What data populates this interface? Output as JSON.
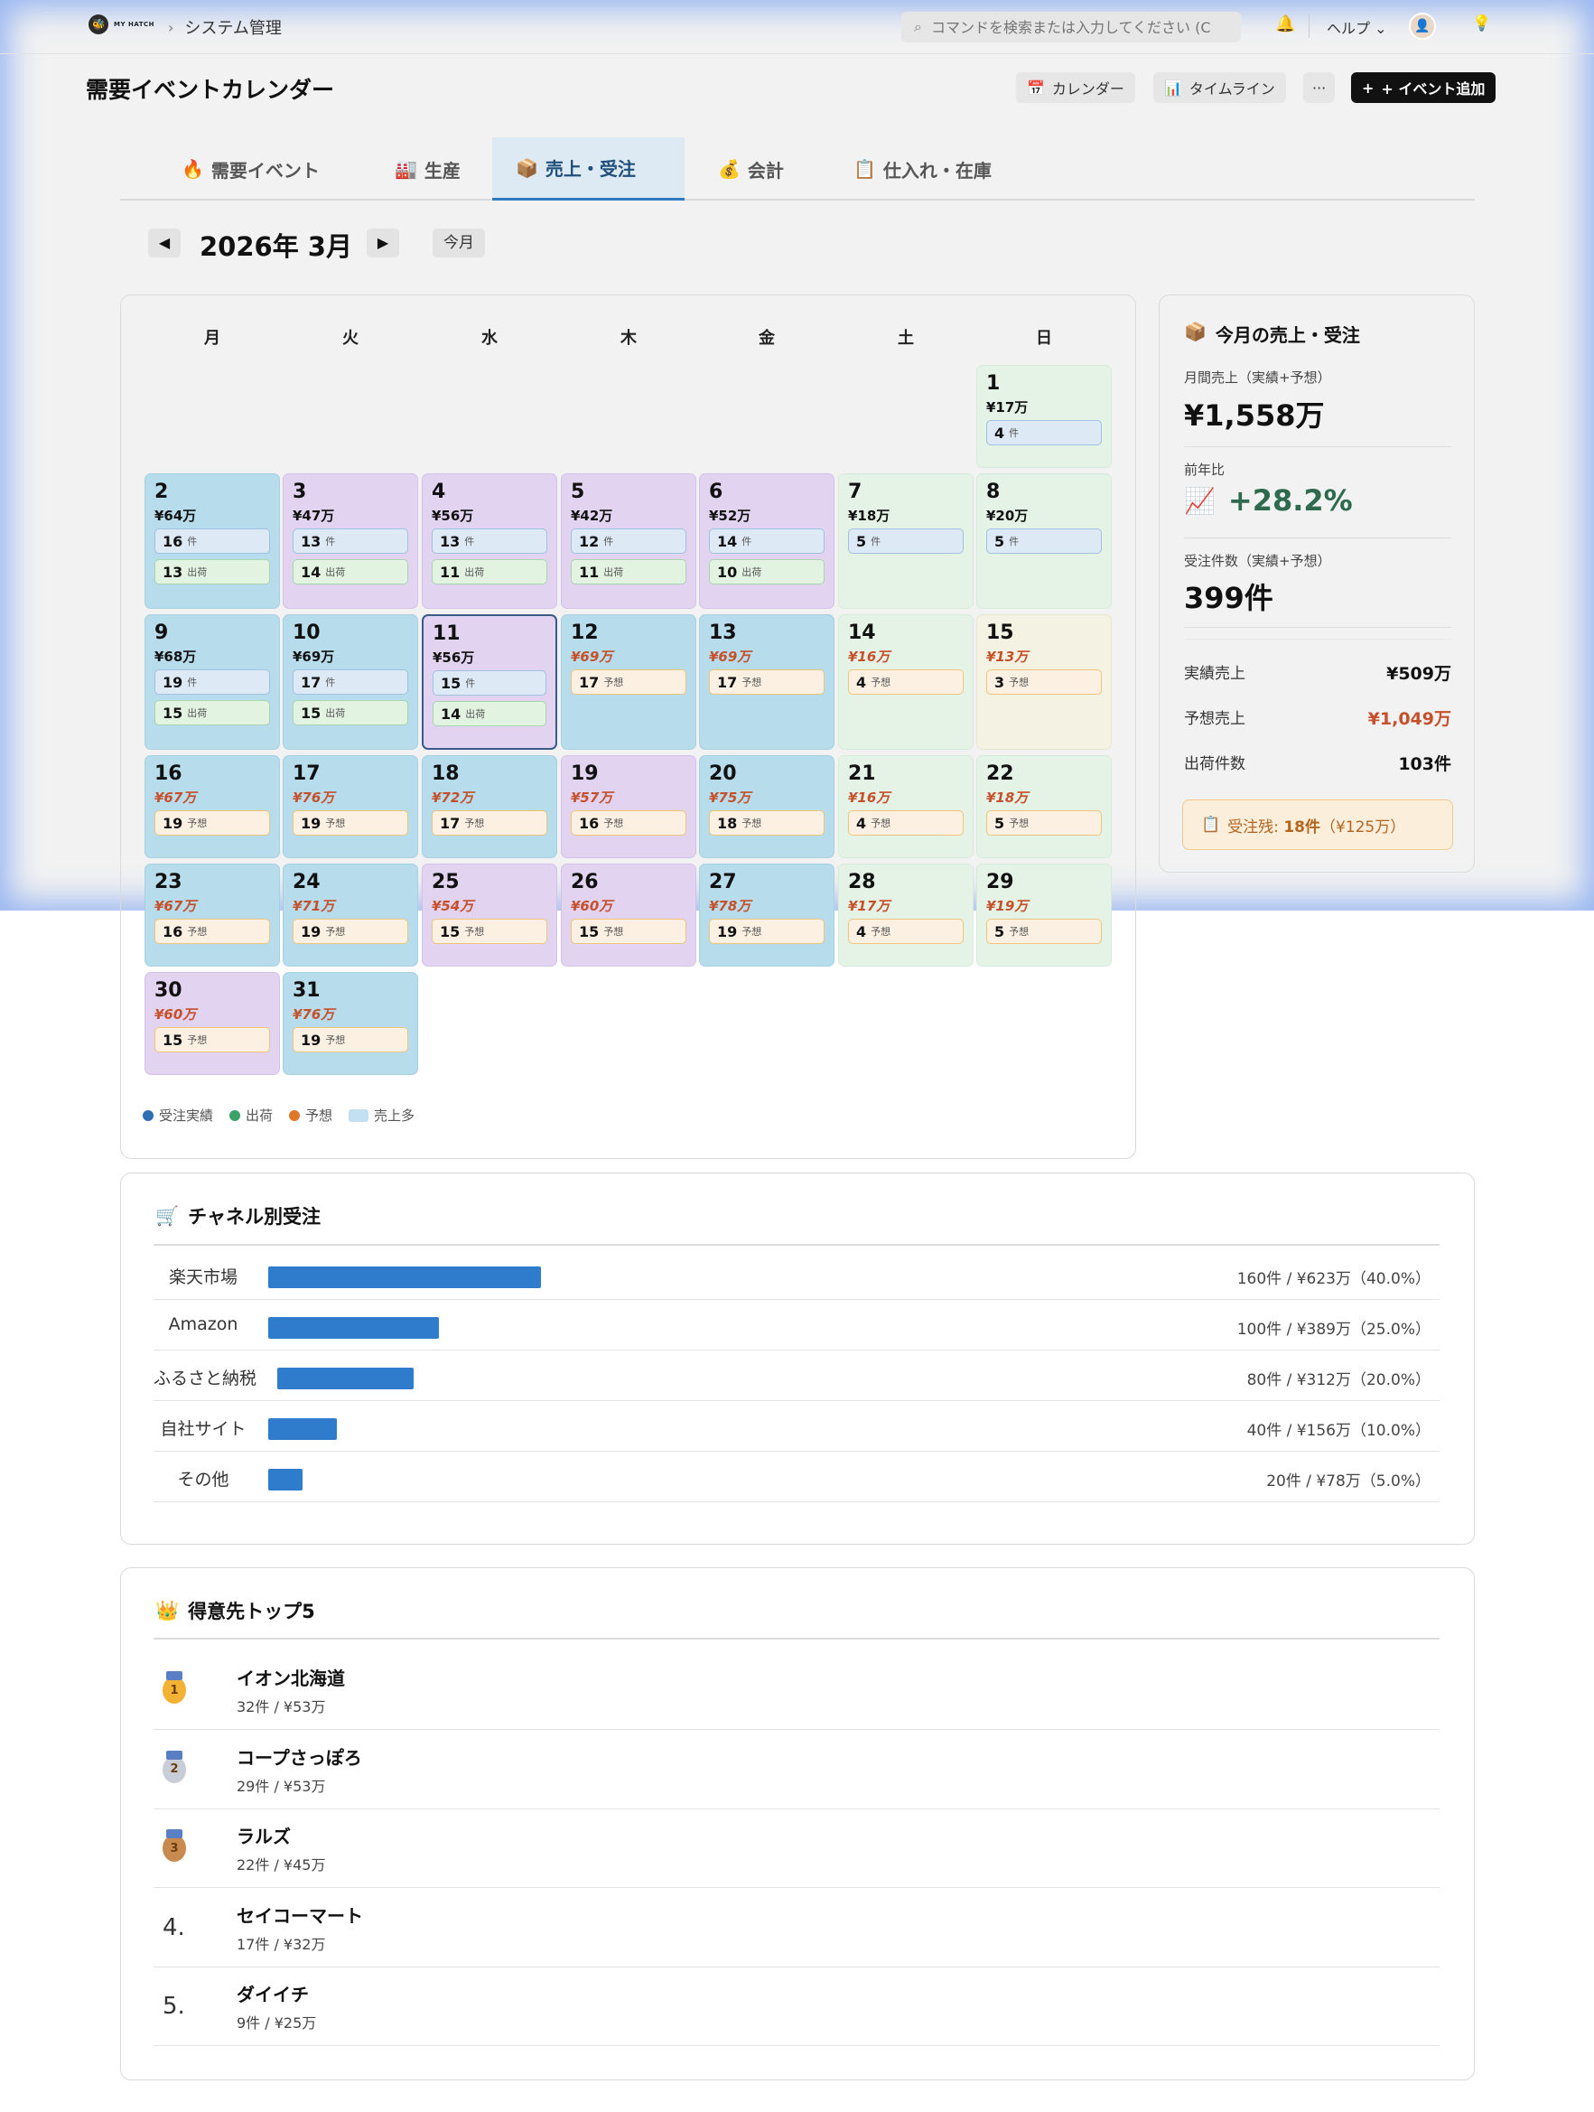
{
  "topbar": {
    "logo_text": "MY HATCH",
    "breadcrumb": "システム管理",
    "search_placeholder": "コマンドを検索または入力してください (C",
    "help_label": "ヘルプ"
  },
  "header": {
    "title": "需要イベントカレンダー",
    "btn_calendar": "カレンダー",
    "btn_timeline": "タイムライン",
    "btn_more": "···",
    "btn_add": "+ イベント追加"
  },
  "tabs": [
    {
      "label": "需要イベント",
      "icon": "🔥"
    },
    {
      "label": "生産",
      "icon": "🏭"
    },
    {
      "label": "売上・受注",
      "icon": "📦"
    },
    {
      "label": "会計",
      "icon": "💰"
    },
    {
      "label": "仕入れ・在庫",
      "icon": "📋"
    }
  ],
  "calendar": {
    "month_title": "2026年 3月",
    "today_label": "今月",
    "weekdays": [
      "月",
      "火",
      "水",
      "木",
      "金",
      "土",
      "日"
    ],
    "days": [
      {
        "d": "1",
        "amt": "¥17万",
        "kind": "actual",
        "bg": "g",
        "p1": "4",
        "p1u": "件",
        "p1t": "ord"
      },
      {
        "d": "2",
        "amt": "¥64万",
        "kind": "actual",
        "bg": "b",
        "p1": "16",
        "p1u": "件",
        "p1t": "ord",
        "p2": "13",
        "p2u": "出荷",
        "p2t": "shp"
      },
      {
        "d": "3",
        "amt": "¥47万",
        "kind": "actual",
        "bg": "p",
        "p1": "13",
        "p1u": "件",
        "p1t": "ord",
        "p2": "14",
        "p2u": "出荷",
        "p2t": "shp"
      },
      {
        "d": "4",
        "amt": "¥56万",
        "kind": "actual",
        "bg": "p",
        "p1": "13",
        "p1u": "件",
        "p1t": "ord",
        "p2": "11",
        "p2u": "出荷",
        "p2t": "shp"
      },
      {
        "d": "5",
        "amt": "¥42万",
        "kind": "actual",
        "bg": "p",
        "p1": "12",
        "p1u": "件",
        "p1t": "ord",
        "p2": "11",
        "p2u": "出荷",
        "p2t": "shp"
      },
      {
        "d": "6",
        "amt": "¥52万",
        "kind": "actual",
        "bg": "p",
        "p1": "14",
        "p1u": "件",
        "p1t": "ord",
        "p2": "10",
        "p2u": "出荷",
        "p2t": "shp"
      },
      {
        "d": "7",
        "amt": "¥18万",
        "kind": "actual",
        "bg": "g",
        "p1": "5",
        "p1u": "件",
        "p1t": "ord"
      },
      {
        "d": "8",
        "amt": "¥20万",
        "kind": "actual",
        "bg": "g",
        "p1": "5",
        "p1u": "件",
        "p1t": "ord"
      },
      {
        "d": "9",
        "amt": "¥68万",
        "kind": "actual",
        "bg": "b",
        "p1": "19",
        "p1u": "件",
        "p1t": "ord",
        "p2": "15",
        "p2u": "出荷",
        "p2t": "shp"
      },
      {
        "d": "10",
        "amt": "¥69万",
        "kind": "actual",
        "bg": "b",
        "p1": "17",
        "p1u": "件",
        "p1t": "ord",
        "p2": "15",
        "p2u": "出荷",
        "p2t": "shp"
      },
      {
        "d": "11",
        "amt": "¥56万",
        "kind": "actual",
        "bg": "p",
        "sel": true,
        "p1": "15",
        "p1u": "件",
        "p1t": "ord",
        "p2": "14",
        "p2u": "出荷",
        "p2t": "shp"
      },
      {
        "d": "12",
        "amt": "¥69万",
        "kind": "forecast",
        "bg": "b",
        "p1": "17",
        "p1u": "予想",
        "p1t": "fct"
      },
      {
        "d": "13",
        "amt": "¥69万",
        "kind": "forecast",
        "bg": "b",
        "p1": "17",
        "p1u": "予想",
        "p1t": "fct"
      },
      {
        "d": "14",
        "amt": "¥16万",
        "kind": "forecast",
        "bg": "g",
        "p1": "4",
        "p1u": "予想",
        "p1t": "fct"
      },
      {
        "d": "15",
        "amt": "¥13万",
        "kind": "forecast",
        "bg": "y",
        "p1": "3",
        "p1u": "予想",
        "p1t": "fct"
      },
      {
        "d": "16",
        "amt": "¥67万",
        "kind": "forecast",
        "bg": "b",
        "p1": "19",
        "p1u": "予想",
        "p1t": "fct"
      },
      {
        "d": "17",
        "amt": "¥76万",
        "kind": "forecast",
        "bg": "b",
        "p1": "19",
        "p1u": "予想",
        "p1t": "fct"
      },
      {
        "d": "18",
        "amt": "¥72万",
        "kind": "forecast",
        "bg": "b",
        "p1": "17",
        "p1u": "予想",
        "p1t": "fct"
      },
      {
        "d": "19",
        "amt": "¥57万",
        "kind": "forecast",
        "bg": "p",
        "p1": "16",
        "p1u": "予想",
        "p1t": "fct"
      },
      {
        "d": "20",
        "amt": "¥75万",
        "kind": "forecast",
        "bg": "b",
        "p1": "18",
        "p1u": "予想",
        "p1t": "fct"
      },
      {
        "d": "21",
        "amt": "¥16万",
        "kind": "forecast",
        "bg": "g",
        "p1": "4",
        "p1u": "予想",
        "p1t": "fct"
      },
      {
        "d": "22",
        "amt": "¥18万",
        "kind": "forecast",
        "bg": "g",
        "p1": "5",
        "p1u": "予想",
        "p1t": "fct"
      },
      {
        "d": "23",
        "amt": "¥67万",
        "kind": "forecast",
        "bg": "b",
        "p1": "16",
        "p1u": "予想",
        "p1t": "fct"
      },
      {
        "d": "24",
        "amt": "¥71万",
        "kind": "forecast",
        "bg": "b",
        "p1": "19",
        "p1u": "予想",
        "p1t": "fct"
      },
      {
        "d": "25",
        "amt": "¥54万",
        "kind": "forecast",
        "bg": "p",
        "p1": "15",
        "p1u": "予想",
        "p1t": "fct"
      },
      {
        "d": "26",
        "amt": "¥60万",
        "kind": "forecast",
        "bg": "p",
        "p1": "15",
        "p1u": "予想",
        "p1t": "fct"
      },
      {
        "d": "27",
        "amt": "¥78万",
        "kind": "forecast",
        "bg": "b",
        "p1": "19",
        "p1u": "予想",
        "p1t": "fct"
      },
      {
        "d": "28",
        "amt": "¥17万",
        "kind": "forecast",
        "bg": "g",
        "p1": "4",
        "p1u": "予想",
        "p1t": "fct"
      },
      {
        "d": "29",
        "amt": "¥19万",
        "kind": "forecast",
        "bg": "g",
        "p1": "5",
        "p1u": "予想",
        "p1t": "fct"
      },
      {
        "d": "30",
        "amt": "¥60万",
        "kind": "forecast",
        "bg": "p",
        "p1": "15",
        "p1u": "予想",
        "p1t": "fct"
      },
      {
        "d": "31",
        "amt": "¥76万",
        "kind": "forecast",
        "bg": "b",
        "p1": "19",
        "p1u": "予想",
        "p1t": "fct"
      }
    ],
    "legend": [
      {
        "label": "受注実績",
        "color": "#2f6db5"
      },
      {
        "label": "出荷",
        "color": "#3aa168"
      },
      {
        "label": "予想",
        "color": "#e0762a"
      },
      {
        "label": "売上多",
        "color": "#c3e0f2"
      }
    ]
  },
  "summary": {
    "title": "今月の売上・受注",
    "monthly_label": "月間売上（実績+予想）",
    "monthly_value": "¥1,558万",
    "yoy_label": "前年比",
    "yoy_value": "+28.2%",
    "orders_label": "受注件数（実績+予想）",
    "orders_value": "399件",
    "actual_label": "実績売上",
    "actual_value": "¥509万",
    "forecast_label": "予想売上",
    "forecast_value": "¥1,049万",
    "shipments_label": "出荷件数",
    "shipments_value": "103件",
    "backlog_prefix": "受注残: ",
    "backlog_count": "18件",
    "backlog_amount": "（¥125万）"
  },
  "channels": {
    "title": "チャネル別受注",
    "rows": [
      {
        "name": "楽天市場",
        "share": 40.0,
        "value": "160件 / ¥623万（40.0%）"
      },
      {
        "name": "Amazon",
        "share": 25.0,
        "value": "100件 / ¥389万（25.0%）"
      },
      {
        "name": "ふるさと納税",
        "share": 20.0,
        "value": "80件 / ¥312万（20.0%）"
      },
      {
        "name": "自社サイト",
        "share": 10.0,
        "value": "40件 / ¥156万（10.0%）"
      },
      {
        "name": "その他",
        "share": 5.0,
        "value": "20件 / ¥78万（5.0%）"
      }
    ]
  },
  "customers": {
    "title": "得意先トップ5",
    "rows": [
      {
        "rank": "1",
        "name": "イオン北海道",
        "sub": "32件 / ¥53万",
        "medal": "gold"
      },
      {
        "rank": "2",
        "name": "コープさっぽろ",
        "sub": "29件 / ¥53万",
        "medal": "silver"
      },
      {
        "rank": "3",
        "name": "ラルズ",
        "sub": "22件 / ¥45万",
        "medal": "bronze"
      },
      {
        "rank": "4.",
        "name": "セイコーマート",
        "sub": "17件 / ¥32万"
      },
      {
        "rank": "5.",
        "name": "ダイイチ",
        "sub": "9件 / ¥25万"
      }
    ]
  },
  "colors": {
    "accent": "#2f7ccc",
    "forecast": "#c6502a",
    "yoy": "#2e6a4e"
  }
}
